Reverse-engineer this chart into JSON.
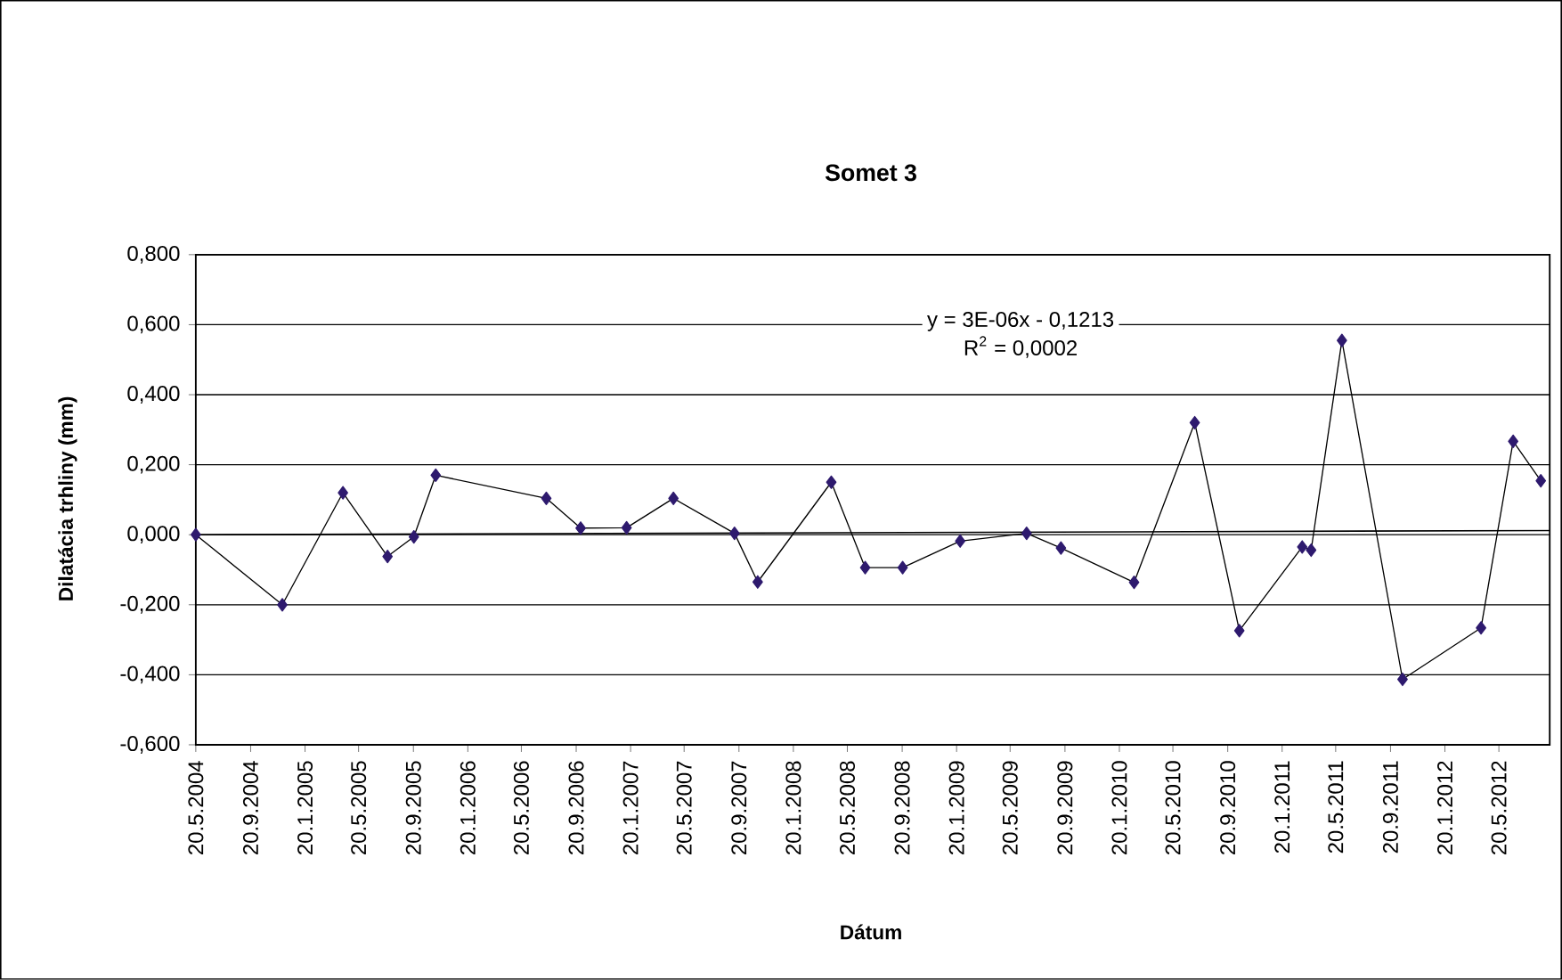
{
  "chart_data": {
    "type": "line",
    "title": "Somet 3",
    "xlabel": "Dátum",
    "ylabel": "Dilatácia trhliny (mm)",
    "annotations": [
      "y = 3E-06x - 0,1213",
      "R$^{2}$ = 0,0002"
    ],
    "xlim": [
      "2004-05-20",
      "2012-09-11"
    ],
    "xticks": [
      {
        "value": "2004-05-20",
        "label": "20.5.2004"
      },
      {
        "value": "2004-09-20",
        "label": "20.9.2004"
      },
      {
        "value": "2005-01-20",
        "label": "20.1.2005"
      },
      {
        "value": "2005-05-20",
        "label": "20.5.2005"
      },
      {
        "value": "2005-09-20",
        "label": "20.9.2005"
      },
      {
        "value": "2006-01-20",
        "label": "20.1.2006"
      },
      {
        "value": "2006-05-20",
        "label": "20.5.2006"
      },
      {
        "value": "2006-09-20",
        "label": "20.9.2006"
      },
      {
        "value": "2007-01-20",
        "label": "20.1.2007"
      },
      {
        "value": "2007-05-20",
        "label": "20.5.2007"
      },
      {
        "value": "2007-09-20",
        "label": "20.9.2007"
      },
      {
        "value": "2008-01-20",
        "label": "20.1.2008"
      },
      {
        "value": "2008-05-20",
        "label": "20.5.2008"
      },
      {
        "value": "2008-09-20",
        "label": "20.9.2008"
      },
      {
        "value": "2009-01-20",
        "label": "20.1.2009"
      },
      {
        "value": "2009-05-20",
        "label": "20.5.2009"
      },
      {
        "value": "2009-09-20",
        "label": "20.9.2009"
      },
      {
        "value": "2010-01-20",
        "label": "20.1.2010"
      },
      {
        "value": "2010-05-20",
        "label": "20.5.2010"
      },
      {
        "value": "2010-09-20",
        "label": "20.9.2010"
      },
      {
        "value": "2011-01-20",
        "label": "20.1.2011"
      },
      {
        "value": "2011-05-20",
        "label": "20.5.2011"
      },
      {
        "value": "2011-09-20",
        "label": "20.9.2011"
      },
      {
        "value": "2012-01-20",
        "label": "20.1.2012"
      },
      {
        "value": "2012-05-20",
        "label": "20.5.2012"
      }
    ],
    "ylim": [
      -0.6,
      0.8
    ],
    "yticks": [
      {
        "value": -0.6,
        "label": "-0,600"
      },
      {
        "value": -0.4,
        "label": "-0,400"
      },
      {
        "value": -0.2,
        "label": "-0,200"
      },
      {
        "value": 0,
        "label": "0,000"
      },
      {
        "value": 0.2,
        "label": "0,200"
      },
      {
        "value": 0.4,
        "label": "0,400"
      },
      {
        "value": 0.6,
        "label": "0,600"
      },
      {
        "value": 0.8,
        "label": "0,800"
      }
    ],
    "grid": "y",
    "series": [
      {
        "color": "#2e1a6e",
        "marker": "diamond",
        "x": [
          "2004-05-20",
          "2004-11-30",
          "2005-04-15",
          "2005-07-24",
          "2005-09-21",
          "2005-11-09",
          "2006-07-15",
          "2006-09-30",
          "2007-01-11",
          "2007-04-26",
          "2007-09-10",
          "2007-11-01",
          "2008-04-14",
          "2008-06-29",
          "2008-09-21",
          "2009-01-28",
          "2009-06-26",
          "2009-09-11",
          "2010-02-22",
          "2010-07-08",
          "2010-10-16",
          "2011-03-06",
          "2011-03-26",
          "2011-06-03",
          "2011-10-17",
          "2012-04-10",
          "2012-06-21",
          "2012-08-22"
        ],
        "values": [
          0.0,
          -0.2,
          0.12,
          -0.062,
          -0.006,
          0.17,
          0.104,
          0.019,
          0.02,
          0.104,
          0.004,
          -0.135,
          0.15,
          -0.094,
          -0.094,
          -0.018,
          0.004,
          -0.038,
          -0.136,
          0.32,
          -0.274,
          -0.035,
          -0.044,
          0.555,
          -0.413,
          -0.266,
          0.267,
          0.154
        ]
      },
      {
        "type": "line",
        "color": "#000000",
        "marker": "none",
        "x": [
          "2004-05-20",
          "2012-09-11"
        ],
        "values": [
          0.0,
          0.012
        ]
      }
    ]
  }
}
